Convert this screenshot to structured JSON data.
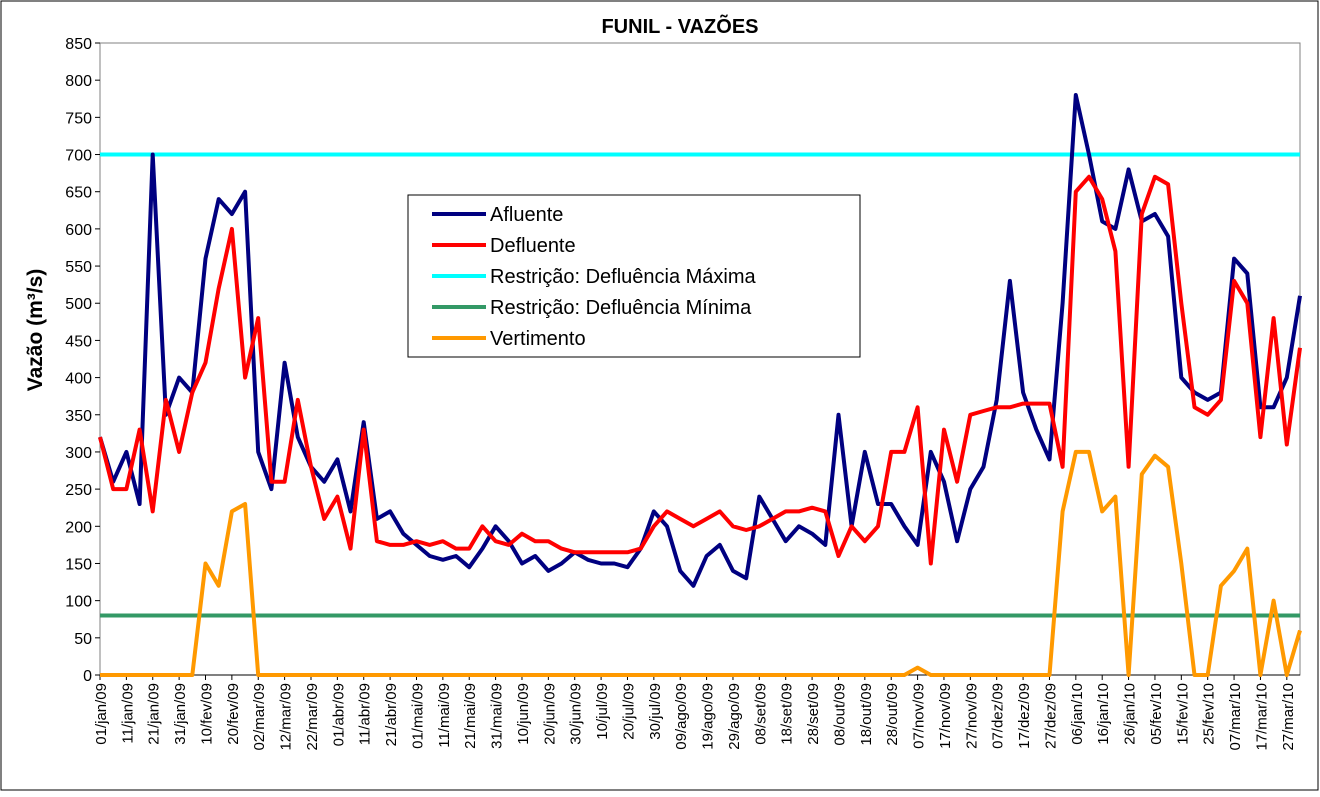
{
  "chart_data": {
    "type": "line",
    "title": "FUNIL - VAZÕES",
    "y_label": "Vazão (m³/s)",
    "categories": [
      "01/jan/09",
      null,
      "11/jan/09",
      null,
      "21/jan/09",
      null,
      "31/jan/09",
      null,
      "10/fev/09",
      null,
      "20/fev/09",
      null,
      "02/mar/09",
      null,
      "12/mar/09",
      null,
      "22/mar/09",
      null,
      "01/abr/09",
      null,
      "11/abr/09",
      null,
      "21/abr/09",
      null,
      "01/mai/09",
      null,
      "11/mai/09",
      null,
      "21/mai/09",
      null,
      "31/mai/09",
      null,
      "10/jun/09",
      null,
      "20/jun/09",
      null,
      "30/jun/09",
      null,
      "10/jul/09",
      null,
      "20/jul/09",
      null,
      "30/jul/09",
      null,
      "09/ago/09",
      null,
      "19/ago/09",
      null,
      "29/ago/09",
      null,
      "08/set/09",
      null,
      "18/set/09",
      null,
      "28/set/09",
      null,
      "08/out/09",
      null,
      "18/out/09",
      null,
      "28/out/09",
      null,
      "07/nov/09",
      null,
      "17/nov/09",
      null,
      "27/nov/09",
      null,
      "07/dez/09",
      null,
      "17/dez/09",
      null,
      "27/dez/09",
      null,
      "06/jan/10",
      null,
      "16/jan/10",
      null,
      "26/jan/10",
      null,
      "05/fev/10",
      null,
      "15/fev/10",
      null,
      "25/fev/10",
      null,
      "07/mar/10",
      null,
      "17/mar/10",
      null,
      "27/mar/10",
      null
    ],
    "series": [
      {
        "name": "Afluente",
        "color": "#000080",
        "values": [
          320,
          260,
          300,
          230,
          700,
          350,
          400,
          380,
          560,
          640,
          620,
          650,
          300,
          250,
          420,
          320,
          280,
          260,
          290,
          220,
          340,
          210,
          220,
          190,
          175,
          160,
          155,
          160,
          145,
          170,
          200,
          180,
          150,
          160,
          140,
          150,
          165,
          155,
          150,
          150,
          145,
          170,
          220,
          200,
          140,
          120,
          160,
          175,
          140,
          130,
          240,
          210,
          180,
          200,
          190,
          175,
          350,
          200,
          300,
          230,
          230,
          200,
          175,
          300,
          260,
          180,
          250,
          280,
          370,
          530,
          380,
          330,
          290,
          500,
          780,
          700,
          610,
          600,
          680,
          610,
          620,
          590,
          400,
          380,
          370,
          380,
          560,
          540,
          360,
          360,
          400,
          510
        ]
      },
      {
        "name": "Defluente",
        "color": "#ff0000",
        "values": [
          320,
          250,
          250,
          330,
          220,
          370,
          300,
          380,
          420,
          520,
          600,
          400,
          480,
          260,
          260,
          370,
          280,
          210,
          240,
          170,
          330,
          180,
          175,
          175,
          180,
          175,
          180,
          170,
          170,
          200,
          180,
          175,
          190,
          180,
          180,
          170,
          165,
          165,
          165,
          165,
          165,
          170,
          200,
          220,
          210,
          200,
          210,
          220,
          200,
          195,
          200,
          210,
          220,
          220,
          225,
          220,
          160,
          200,
          180,
          200,
          300,
          300,
          360,
          150,
          330,
          260,
          350,
          355,
          360,
          360,
          365,
          365,
          365,
          280,
          650,
          670,
          640,
          570,
          280,
          620,
          670,
          660,
          500,
          360,
          350,
          370,
          530,
          500,
          320,
          480,
          310,
          440
        ]
      },
      {
        "name": "Restrição: Defluência Máxima",
        "color": "#00ffff",
        "values": [
          700,
          700,
          700,
          700,
          700,
          700,
          700,
          700,
          700,
          700,
          700,
          700,
          700,
          700,
          700,
          700,
          700,
          700,
          700,
          700,
          700,
          700,
          700,
          700,
          700,
          700,
          700,
          700,
          700,
          700,
          700,
          700,
          700,
          700,
          700,
          700,
          700,
          700,
          700,
          700,
          700,
          700,
          700,
          700,
          700,
          700,
          700,
          700,
          700,
          700,
          700,
          700,
          700,
          700,
          700,
          700,
          700,
          700,
          700,
          700,
          700,
          700,
          700,
          700,
          700,
          700,
          700,
          700,
          700,
          700,
          700,
          700,
          700,
          700,
          700,
          700,
          700,
          700,
          700,
          700,
          700,
          700,
          700,
          700,
          700,
          700,
          700,
          700,
          700,
          700,
          700,
          700
        ]
      },
      {
        "name": "Restrição: Defluência Mínima",
        "color": "#339966",
        "values": [
          80,
          80,
          80,
          80,
          80,
          80,
          80,
          80,
          80,
          80,
          80,
          80,
          80,
          80,
          80,
          80,
          80,
          80,
          80,
          80,
          80,
          80,
          80,
          80,
          80,
          80,
          80,
          80,
          80,
          80,
          80,
          80,
          80,
          80,
          80,
          80,
          80,
          80,
          80,
          80,
          80,
          80,
          80,
          80,
          80,
          80,
          80,
          80,
          80,
          80,
          80,
          80,
          80,
          80,
          80,
          80,
          80,
          80,
          80,
          80,
          80,
          80,
          80,
          80,
          80,
          80,
          80,
          80,
          80,
          80,
          80,
          80,
          80,
          80,
          80,
          80,
          80,
          80,
          80,
          80,
          80,
          80,
          80,
          80,
          80,
          80,
          80,
          80,
          80,
          80,
          80,
          80
        ]
      },
      {
        "name": "Vertimento",
        "color": "#ff9900",
        "values": [
          0,
          0,
          0,
          0,
          0,
          0,
          0,
          0,
          150,
          120,
          220,
          230,
          0,
          0,
          0,
          0,
          0,
          0,
          0,
          0,
          0,
          0,
          0,
          0,
          0,
          0,
          0,
          0,
          0,
          0,
          0,
          0,
          0,
          0,
          0,
          0,
          0,
          0,
          0,
          0,
          0,
          0,
          0,
          0,
          0,
          0,
          0,
          0,
          0,
          0,
          0,
          0,
          0,
          0,
          0,
          0,
          0,
          0,
          0,
          0,
          0,
          0,
          10,
          0,
          0,
          0,
          0,
          0,
          0,
          0,
          0,
          0,
          0,
          220,
          300,
          300,
          220,
          240,
          0,
          270,
          295,
          280,
          150,
          0,
          0,
          120,
          140,
          170,
          0,
          100,
          0,
          60
        ]
      }
    ],
    "ylim": [
      0,
      850
    ],
    "yticks": [
      0,
      50,
      100,
      150,
      200,
      250,
      300,
      350,
      400,
      450,
      500,
      550,
      600,
      650,
      700,
      750,
      800,
      850
    ],
    "grid": false,
    "legend": "center"
  }
}
